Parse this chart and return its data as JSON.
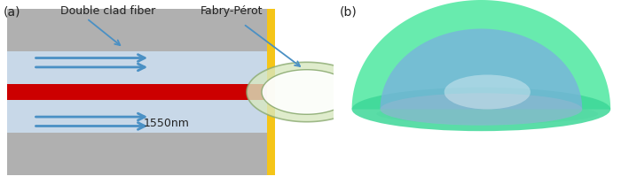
{
  "fig_width": 7.09,
  "fig_height": 2.08,
  "dpi": 100,
  "panel_a_label": "(a)",
  "panel_b_label": "(b)",
  "label_dcf": "Double clad fiber",
  "label_fp": "Fabry-Pérot",
  "label_1550": "1550nm",
  "gray_outer": "#b0b0b0",
  "gray_inner": "#c8d8e8",
  "red_core": "#cc0000",
  "gold_wall": "#f5c518",
  "arrow_color": "#4a90c4",
  "text_color": "#222222",
  "fp_ring_color": "#d8e8c0",
  "fp_ring_edge": "#8aaa70",
  "bg_b_color": "#dde8f0",
  "green_dome_outer": "#50e8a0",
  "green_dome_inner": "#60d8b0",
  "blue_dome": "#7090d0"
}
